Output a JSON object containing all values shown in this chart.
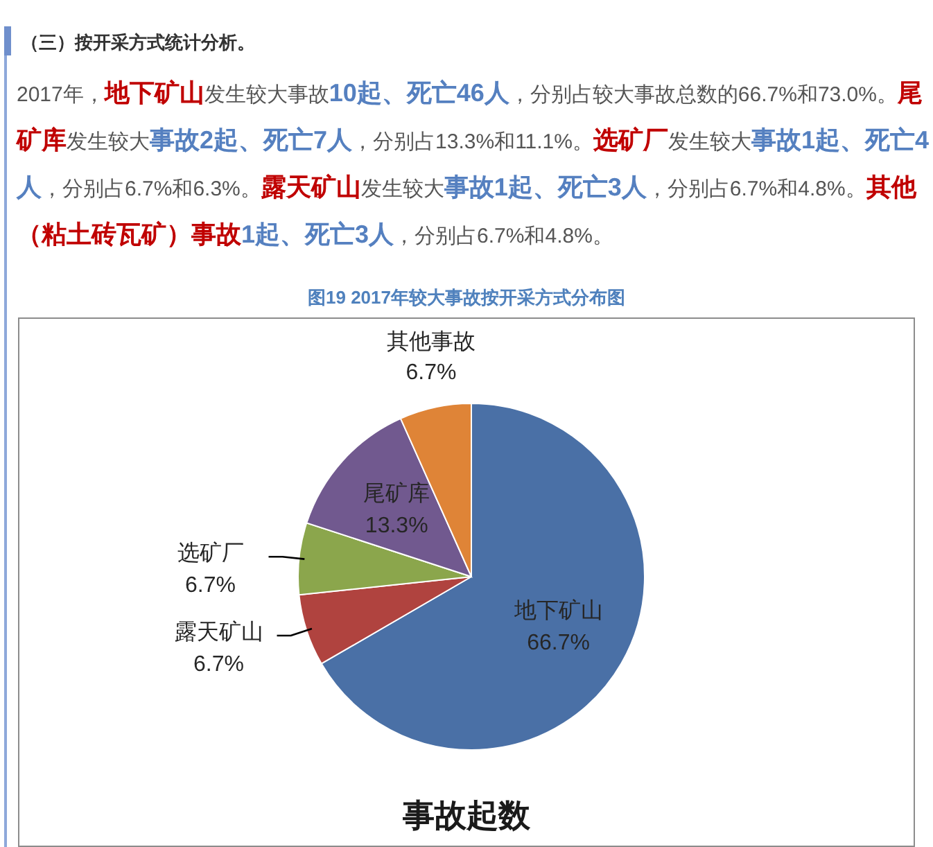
{
  "chart_data": {
    "type": "pie",
    "title": "图19 2017年较大事故按开采方式分布图",
    "subtitle": "事故起数",
    "annotations": [
      "（三）按开采方式统计分析。",
      "2017年，",
      "地下矿山",
      "发生较大事故",
      "10起、死亡46人",
      "，分别占较大事故总数的66.7%和73.0%。",
      "尾矿库",
      "发生较大",
      "事故2起、死亡7人",
      "，分别占13.3%和11.1%。",
      "选矿厂",
      "发生较大",
      "事故1起、死亡4人",
      "，分别占6.7%和6.3%。",
      "露天矿山",
      "发生较大",
      "事故1起、死亡3人",
      "，分别占6.7%和4.8%。",
      "其他（粘土砖瓦矿）事故",
      "1起、死亡3人",
      "，分别占6.7%和4.8%。"
    ],
    "categories": [
      "地下矿山",
      "露天矿山",
      "选矿厂",
      "尾矿库",
      "其他事故"
    ],
    "values": [
      66.7,
      6.7,
      6.7,
      13.3,
      6.7
    ],
    "value_labels": [
      "66.7%",
      "6.7%",
      "6.7%",
      "13.3%",
      "6.7%"
    ],
    "colors": [
      "#4a70a6",
      "#b0433f",
      "#8ba64c",
      "#71598f",
      "#df8437"
    ]
  }
}
